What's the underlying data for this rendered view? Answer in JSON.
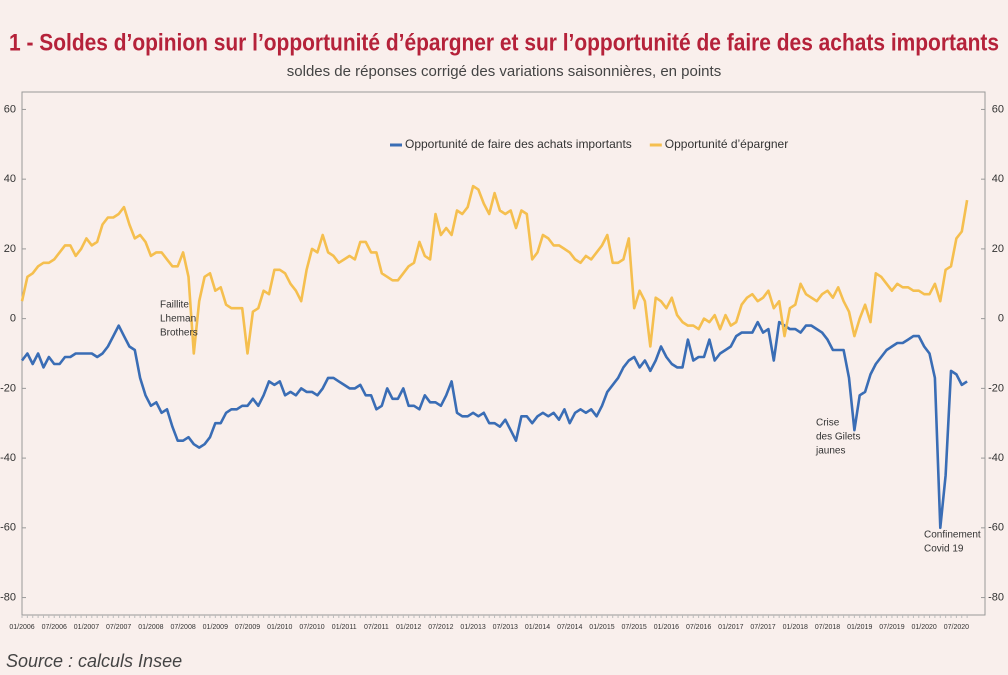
{
  "chart_data": {
    "type": "line",
    "title": "1 - Soldes d’opinion sur l’opportunité d’épargner et sur l’opportunité de faire des achats importants",
    "subtitle": "soldes de réponses corrigé des variations saisonnières, en points",
    "source": "Source : calculs Insee",
    "categories": [
      "01/2006",
      null,
      null,
      null,
      null,
      null,
      "07/2006",
      null,
      null,
      null,
      null,
      null,
      "01/2007",
      null,
      null,
      null,
      null,
      null,
      "07/2007",
      null,
      null,
      null,
      null,
      null,
      "01/2008",
      null,
      null,
      null,
      null,
      null,
      "07/2008",
      null,
      null,
      null,
      null,
      null,
      "01/2009",
      null,
      null,
      null,
      null,
      null,
      "07/2009",
      null,
      null,
      null,
      null,
      null,
      "01/2010",
      null,
      null,
      null,
      null,
      null,
      "07/2010",
      null,
      null,
      null,
      null,
      null,
      "01/2011",
      null,
      null,
      null,
      null,
      null,
      "07/2011",
      null,
      null,
      null,
      null,
      null,
      "01/2012",
      null,
      null,
      null,
      null,
      null,
      "07/2012",
      null,
      null,
      null,
      null,
      null,
      "01/2013",
      null,
      null,
      null,
      null,
      null,
      "07/2013",
      null,
      null,
      null,
      null,
      null,
      "01/2014",
      null,
      null,
      null,
      null,
      null,
      "07/2014",
      null,
      null,
      null,
      null,
      null,
      "01/2015",
      null,
      null,
      null,
      null,
      null,
      "07/2015",
      null,
      null,
      null,
      null,
      null,
      "01/2016",
      null,
      null,
      null,
      null,
      null,
      "07/2016",
      null,
      null,
      null,
      null,
      null,
      "01/2017",
      null,
      null,
      null,
      null,
      null,
      "07/2017",
      null,
      null,
      null,
      null,
      null,
      "01/2018",
      null,
      null,
      null,
      null,
      null,
      "07/2018",
      null,
      null,
      null,
      null,
      null,
      "01/2019",
      null,
      null,
      null,
      null,
      null,
      "07/2019",
      null,
      null,
      null,
      null,
      null,
      "01/2020",
      null,
      null,
      null,
      null,
      null,
      "07/2020",
      null,
      null
    ],
    "series": [
      {
        "name": "Opportunité de faire des achats importants",
        "color": "#3a6db5",
        "values": [
          -12,
          -10,
          -13,
          -10,
          -14,
          -11,
          -13,
          -13,
          -11,
          -11,
          -10,
          -10,
          -10,
          -10,
          -11,
          -10,
          -8,
          -5,
          -2,
          -5,
          -8,
          -9,
          -17,
          -22,
          -25,
          -24,
          -27,
          -26,
          -31,
          -35,
          -35,
          -34,
          -36,
          -37,
          -36,
          -34,
          -30,
          -30,
          -27,
          -26,
          -26,
          -25,
          -25,
          -23,
          -25,
          -22,
          -18,
          -19,
          -18,
          -22,
          -21,
          -22,
          -20,
          -21,
          -21,
          -22,
          -20,
          -17,
          -17,
          -18,
          -19,
          -20,
          -20,
          -19,
          -22,
          -22,
          -26,
          -25,
          -20,
          -23,
          -23,
          -20,
          -25,
          -25,
          -26,
          -22,
          -24,
          -24,
          -25,
          -22,
          -18,
          -27,
          -28,
          -28,
          -27,
          -28,
          -27,
          -30,
          -30,
          -31,
          -29,
          -32,
          -35,
          -28,
          -28,
          -30,
          -28,
          -27,
          -28,
          -27,
          -29,
          -26,
          -30,
          -27,
          -26,
          -27,
          -26,
          -28,
          -25,
          -21,
          -19,
          -17,
          -14,
          -12,
          -11,
          -14,
          -12,
          -15,
          -12,
          -8,
          -11,
          -13,
          -14,
          -14,
          -6,
          -12,
          -11,
          -11,
          -6,
          -12,
          -10,
          -9,
          -8,
          -5,
          -4,
          -4,
          -4,
          -1,
          -4,
          -3,
          -12,
          -1,
          -2,
          -3,
          -3,
          -4,
          -2,
          -2,
          -3,
          -4,
          -6,
          -9,
          -9,
          -9,
          -17,
          -32,
          -22,
          -21,
          -16,
          -13,
          -11,
          -9,
          -8,
          -7,
          -7,
          -6,
          -5,
          -5,
          -8,
          -10,
          -17,
          -60,
          -45,
          -15,
          -16,
          -19,
          -18
        ]
      },
      {
        "name": "Opportunité d’épargner",
        "color": "#f5bf4f",
        "values": [
          5,
          12,
          13,
          15,
          16,
          16,
          17,
          19,
          21,
          21,
          18,
          20,
          23,
          21,
          22,
          27,
          29,
          29,
          30,
          32,
          27,
          23,
          24,
          22,
          18,
          19,
          19,
          17,
          15,
          15,
          19,
          12,
          -10,
          5,
          12,
          13,
          8,
          9,
          4,
          3,
          3,
          3,
          -10,
          2,
          3,
          8,
          7,
          14,
          14,
          13,
          10,
          8,
          5,
          14,
          20,
          19,
          24,
          19,
          18,
          16,
          17,
          18,
          17,
          22,
          22,
          19,
          19,
          13,
          12,
          11,
          11,
          13,
          15,
          16,
          22,
          18,
          17,
          30,
          24,
          26,
          24,
          31,
          30,
          32,
          38,
          37,
          33,
          30,
          36,
          31,
          30,
          31,
          26,
          31,
          30,
          17,
          19,
          24,
          23,
          21,
          21,
          20,
          19,
          17,
          16,
          18,
          17,
          19,
          21,
          24,
          16,
          16,
          17,
          23,
          3,
          8,
          5,
          -8,
          6,
          5,
          3,
          6,
          1,
          -1,
          -2,
          -2,
          -3,
          0,
          -1,
          1,
          -3,
          1,
          -2,
          -1,
          4,
          6,
          7,
          5,
          6,
          8,
          3,
          5,
          -5,
          3,
          4,
          10,
          7,
          6,
          5,
          7,
          8,
          6,
          9,
          5,
          2,
          -5,
          0,
          4,
          -1,
          13,
          12,
          10,
          8,
          10,
          9,
          9,
          8,
          8,
          7,
          7,
          10,
          5,
          14,
          15,
          23,
          25,
          34
        ]
      }
    ],
    "ylim": [
      -85,
      65
    ],
    "yticks": [
      -80,
      -60,
      -40,
      -20,
      0,
      20,
      40,
      60
    ],
    "y2lim": [
      -85,
      65
    ],
    "y2ticks": [
      -80,
      -60,
      -40,
      -20,
      0,
      20,
      40,
      60
    ],
    "annotations": [
      {
        "lines": [
          "Faillite",
          "Lheman",
          "Brothers"
        ]
      },
      {
        "lines": [
          "Crise",
          "des Gilets",
          "jaunes"
        ]
      },
      {
        "lines": [
          "Confinement",
          "Covid 19"
        ]
      }
    ],
    "legend": "top"
  }
}
